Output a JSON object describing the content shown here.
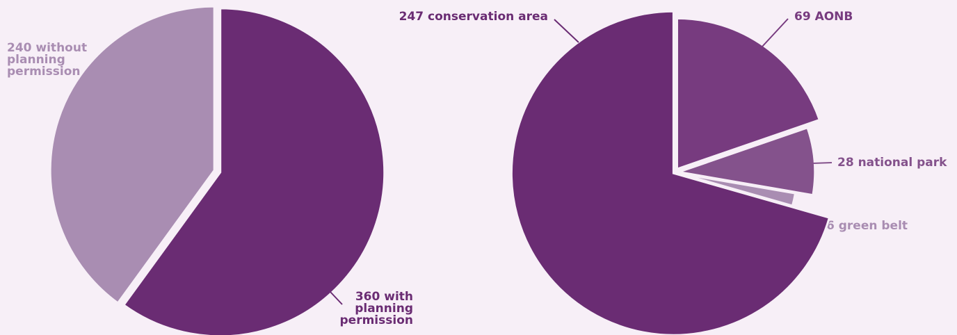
{
  "colors": {
    "background": "#f7eff7",
    "dark_purple": "#6a2c73",
    "mid_purple": "#773b7f",
    "soft_purple": "#84528c",
    "light_purple": "#a98db2"
  },
  "chart_data": [
    {
      "type": "pie",
      "slices": [
        {
          "value": 360,
          "label_lines": [
            "360 with",
            "planning",
            "permission"
          ],
          "color": "#6a2c73"
        },
        {
          "value": 240,
          "label_lines": [
            "240 without",
            "planning",
            "permission"
          ],
          "color": "#a98db2"
        }
      ],
      "title": "",
      "legend": "none"
    },
    {
      "type": "pie",
      "slices": [
        {
          "value": 69,
          "label_lines": [
            "69 AONB"
          ],
          "color": "#773b7f"
        },
        {
          "value": 28,
          "label_lines": [
            "28 national park"
          ],
          "color": "#84528c"
        },
        {
          "value": 6,
          "label_lines": [
            "6 green belt"
          ],
          "color": "#a98db2"
        },
        {
          "value": 247,
          "label_lines": [
            "247 conservation area"
          ],
          "color": "#6a2c73"
        }
      ],
      "title": "",
      "legend": "none"
    }
  ]
}
